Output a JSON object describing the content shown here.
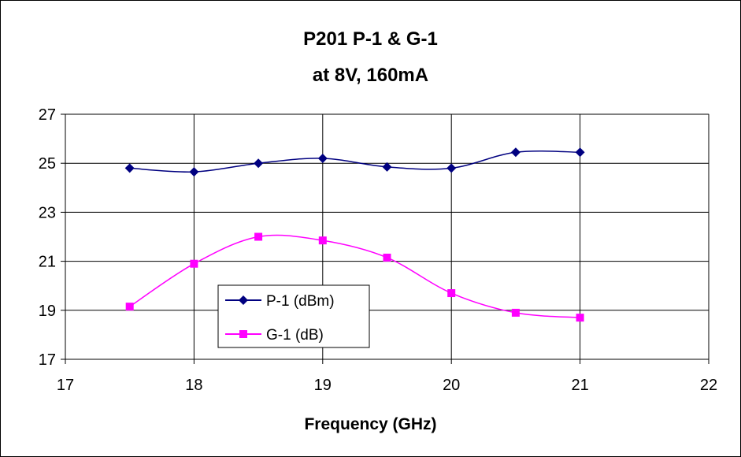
{
  "colors": {
    "p1": "#000080",
    "g1": "#ff00ff",
    "grid": "#000000"
  },
  "chart_data": {
    "type": "line",
    "title": "P201 P-1 & G-1",
    "subtitle": "at 8V, 160mA",
    "xlabel": "Frequency (GHz)",
    "ylabel": "",
    "xlim": [
      17,
      22
    ],
    "ylim": [
      17,
      27
    ],
    "xticks": [
      "17",
      "18",
      "19",
      "20",
      "21",
      "22"
    ],
    "yticks": [
      "17",
      "19",
      "21",
      "23",
      "25",
      "27"
    ],
    "grid": true,
    "legend": "inside-lower-left",
    "x": [
      17.5,
      18,
      18.5,
      19,
      19.5,
      20,
      20.5,
      21
    ],
    "series": [
      {
        "name": "P-1 (dBm)",
        "marker": "diamond",
        "values": [
          24.8,
          24.65,
          25.0,
          25.2,
          24.85,
          24.8,
          25.45,
          25.45
        ]
      },
      {
        "name": "G-1 (dB)",
        "marker": "square",
        "values": [
          19.15,
          20.9,
          22.0,
          21.85,
          21.15,
          19.7,
          18.9,
          18.7
        ]
      }
    ]
  }
}
